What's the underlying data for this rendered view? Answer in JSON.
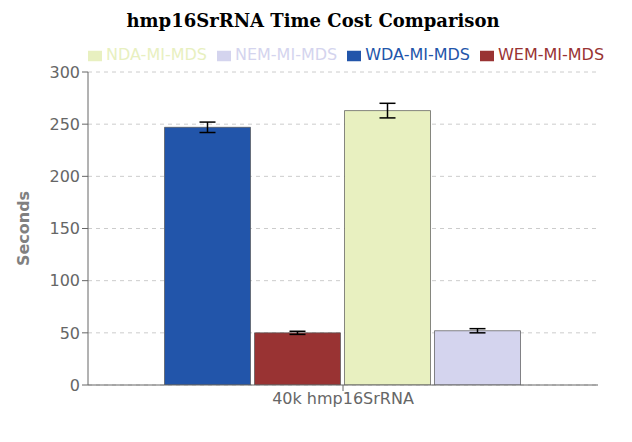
{
  "chart_data": {
    "type": "bar",
    "title": "hmp16SrRNA Time Cost Comparison",
    "categories": [
      "40k hmp16SrRNA"
    ],
    "ylabel": "Seconds",
    "ylim": [
      0,
      300
    ],
    "yticks": [
      0,
      50,
      100,
      150,
      200,
      250,
      300
    ],
    "grid": true,
    "legend": "upper left",
    "series": [
      {
        "name": "WDA-MI-MDS",
        "color": "#2255aa",
        "values": [
          247
        ],
        "error": [
          5
        ]
      },
      {
        "name": "WEM-MI-MDS",
        "color": "#993333",
        "values": [
          50
        ],
        "error": [
          1.5
        ]
      },
      {
        "name": "NDA-MI-MDS",
        "color": "#e8f0c0",
        "values": [
          263
        ],
        "error": [
          7
        ]
      },
      {
        "name": "NEM-MI-MDS",
        "color": "#d4d4ee",
        "values": [
          52
        ],
        "error": [
          2
        ]
      }
    ]
  }
}
